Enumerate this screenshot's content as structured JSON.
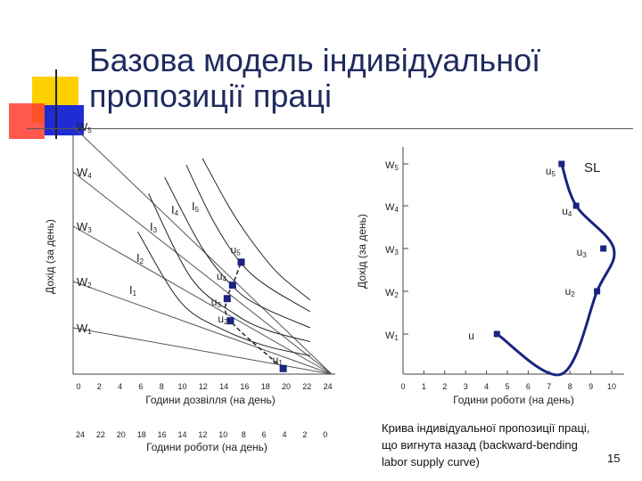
{
  "slide": {
    "title_line1": "Базова модель індивідуальної",
    "title_line2": "пропозиції праці",
    "caption_lines": [
      "Крива індивідуальної пропозиції праці,",
      "що вигнута назад (backward-bending",
      "labor supply curve)"
    ],
    "slide_number": "15",
    "colors": {
      "title": "#1e2a5e",
      "curve": "#1a237e",
      "point": "#1a237e",
      "deco_yellow": "#ffd000",
      "deco_red": "#ff3d2e",
      "deco_blue": "#1f2bd4"
    }
  },
  "chart_data": [
    {
      "type": "line",
      "ylabel": "Дохід (за день)",
      "xlabel": "Години дозвілля (на день)",
      "xlabel2": "Години роботи (на день)",
      "x_ticks": [
        "0",
        "2",
        "4",
        "6",
        "8",
        "10",
        "12",
        "14",
        "16",
        "18",
        "20",
        "22",
        "24"
      ],
      "x2_ticks": [
        "24",
        "22",
        "20",
        "18",
        "16",
        "14",
        "12",
        "10",
        "8",
        "6",
        "4",
        "2",
        "0"
      ],
      "y_labels": [
        "W1",
        "W2",
        "W3",
        "W4",
        "W5"
      ],
      "xlim": [
        0,
        24
      ],
      "grid": false,
      "budget_lines": [
        {
          "name": "W1",
          "x": [
            0,
            24
          ],
          "y": [
            1,
            0
          ]
        },
        {
          "name": "W2",
          "x": [
            0,
            24
          ],
          "y": [
            2,
            0
          ]
        },
        {
          "name": "W3",
          "x": [
            0,
            24
          ],
          "y": [
            3,
            0
          ]
        },
        {
          "name": "W4",
          "x": [
            0,
            24
          ],
          "y": [
            4,
            0
          ]
        },
        {
          "name": "W5",
          "x": [
            0,
            24
          ],
          "y": [
            5,
            0
          ]
        }
      ],
      "indifference_curves": [
        {
          "name": "I1",
          "x": [
            6,
            10,
            14,
            18,
            22
          ],
          "y": [
            2.9,
            1.55,
            0.95,
            0.6,
            0.4
          ]
        },
        {
          "name": "I2",
          "x": [
            7,
            11,
            15,
            18,
            22
          ],
          "y": [
            3.6,
            2.05,
            1.3,
            0.95,
            0.7
          ]
        },
        {
          "name": "I3",
          "x": [
            8.5,
            12,
            15,
            17.5,
            22
          ],
          "y": [
            3.9,
            2.6,
            1.85,
            1.45,
            1.0
          ]
        },
        {
          "name": "I4",
          "x": [
            10.5,
            13,
            15.5,
            18,
            22
          ],
          "y": [
            4.15,
            3.1,
            2.35,
            1.9,
            1.35
          ]
        },
        {
          "name": "I5",
          "x": [
            12,
            14.5,
            16.5,
            19,
            22
          ],
          "y": [
            4.3,
            3.35,
            2.75,
            2.15,
            1.6
          ]
        }
      ],
      "points": [
        {
          "name": "U1",
          "x": 19.5,
          "y": 0.12
        },
        {
          "name": "U2",
          "x": 14.6,
          "y": 1.15
        },
        {
          "name": "U3",
          "x": 14.3,
          "y": 1.63
        },
        {
          "name": "U4",
          "x": 14.8,
          "y": 1.92
        },
        {
          "name": "U5",
          "x": 15.6,
          "y": 2.35
        }
      ],
      "labels": {
        "I1": "I1",
        "I2": "I2",
        "I3": "I3",
        "I4": "I4",
        "I5": "I5",
        "U1": "u1",
        "U2": "u2",
        "U3": "u3",
        "U4": "u4",
        "U5": "u5"
      }
    },
    {
      "type": "line",
      "ylabel": "Дохід (за день)",
      "xlabel": "Години роботи (на день)",
      "x_ticks": [
        "0",
        "1",
        "2",
        "3",
        "4",
        "5",
        "6",
        "7",
        "8",
        "9",
        "10"
      ],
      "y_labels": [
        "W1",
        "W2",
        "W3",
        "W4",
        "W5"
      ],
      "xlim": [
        0,
        10
      ],
      "grid": false,
      "series": [
        {
          "name": "SL",
          "x": [
            4.5,
            9.3,
            9.6,
            8.3,
            7.6
          ],
          "y": [
            1,
            2,
            3,
            4,
            5
          ]
        }
      ],
      "series_label": "SL",
      "point_labels": [
        "u",
        "u2",
        "u3",
        "u4",
        "u5"
      ]
    }
  ]
}
